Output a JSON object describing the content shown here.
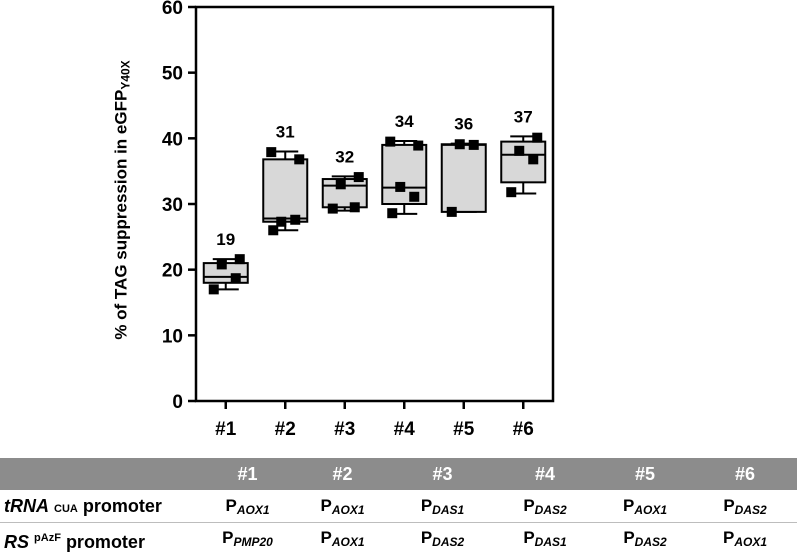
{
  "chart_data": {
    "type": "box",
    "ylabel": "%  of TAG suppression in eGFP",
    "ylabel_subscript": "Y40X",
    "ylim": [
      0,
      60
    ],
    "yticks": [
      "0",
      "10",
      "20",
      "30",
      "40",
      "50",
      "60"
    ],
    "categories": [
      "#1",
      "#2",
      "#3",
      "#4",
      "#5",
      "#6"
    ],
    "box_labels": [
      "19",
      "31",
      "32",
      "34",
      "36",
      "37"
    ],
    "boxes": [
      {
        "min": 17.0,
        "q1": 18.0,
        "median": 18.9,
        "q3": 21.0,
        "max": 21.6,
        "points": [
          17.0,
          18.7,
          20.8,
          21.6
        ]
      },
      {
        "min": 26.0,
        "q1": 27.3,
        "median": 27.8,
        "q3": 36.8,
        "max": 38.0,
        "points": [
          26.0,
          27.6,
          27.3,
          36.8,
          37.9
        ]
      },
      {
        "min": 29.0,
        "q1": 29.5,
        "median": 32.8,
        "q3": 33.8,
        "max": 34.2,
        "points": [
          29.3,
          29.5,
          33.0,
          34.1
        ]
      },
      {
        "min": 28.5,
        "q1": 30.0,
        "median": 32.5,
        "q3": 39.0,
        "max": 39.6,
        "points": [
          28.6,
          31.1,
          32.6,
          38.9,
          39.5
        ]
      },
      {
        "min": 28.8,
        "q1": 28.8,
        "median": 39.0,
        "q3": 39.1,
        "max": 39.2,
        "points": [
          28.8,
          39.0,
          39.1
        ]
      },
      {
        "min": 31.6,
        "q1": 33.3,
        "median": 37.5,
        "q3": 39.5,
        "max": 40.3,
        "points": [
          31.8,
          36.8,
          38.1,
          40.1
        ]
      }
    ],
    "box_fill": "#d8d8d8",
    "marker_color": "#000000",
    "grid": false
  },
  "table": {
    "header": [
      "#1",
      "#2",
      "#3",
      "#4",
      "#5",
      "#6"
    ],
    "rows": [
      {
        "label_main": "tRNA",
        "label_small": "CUA",
        "label_tail": "promoter",
        "cells": [
          {
            "p": "P",
            "sub": "AOX1"
          },
          {
            "p": "P",
            "sub": "AOX1"
          },
          {
            "p": "P",
            "sub": "DAS1"
          },
          {
            "p": "P",
            "sub": "DAS2"
          },
          {
            "p": "P",
            "sub": "AOX1"
          },
          {
            "p": "P",
            "sub": "DAS2"
          }
        ]
      },
      {
        "label_main": "RS",
        "label_small": "pAzF",
        "label_tail": "promoter",
        "cells": [
          {
            "p": "P",
            "sub": "PMP20"
          },
          {
            "p": "P",
            "sub": "AOX1"
          },
          {
            "p": "P",
            "sub": "DAS2"
          },
          {
            "p": "P",
            "sub": "DAS1"
          },
          {
            "p": "P",
            "sub": "DAS2"
          },
          {
            "p": "P",
            "sub": "AOX1"
          }
        ]
      }
    ],
    "header_bg": "#8c8c8c"
  }
}
